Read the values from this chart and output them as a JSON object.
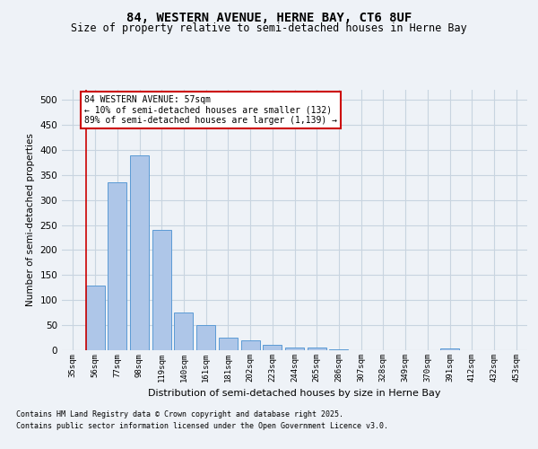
{
  "title1": "84, WESTERN AVENUE, HERNE BAY, CT6 8UF",
  "title2": "Size of property relative to semi-detached houses in Herne Bay",
  "xlabel": "Distribution of semi-detached houses by size in Herne Bay",
  "ylabel": "Number of semi-detached properties",
  "categories": [
    "35sqm",
    "56sqm",
    "77sqm",
    "98sqm",
    "119sqm",
    "140sqm",
    "161sqm",
    "181sqm",
    "202sqm",
    "223sqm",
    "244sqm",
    "265sqm",
    "286sqm",
    "307sqm",
    "328sqm",
    "349sqm",
    "370sqm",
    "391sqm",
    "412sqm",
    "432sqm",
    "453sqm"
  ],
  "values": [
    0,
    130,
    335,
    390,
    240,
    75,
    50,
    25,
    20,
    10,
    6,
    5,
    1,
    0,
    0,
    0,
    0,
    3,
    0,
    0,
    0
  ],
  "bar_color": "#aec6e8",
  "bar_edge_color": "#5b9bd5",
  "ylim": [
    0,
    520
  ],
  "yticks": [
    0,
    50,
    100,
    150,
    200,
    250,
    300,
    350,
    400,
    450,
    500
  ],
  "annotation_text": "84 WESTERN AVENUE: 57sqm\n← 10% of semi-detached houses are smaller (132)\n89% of semi-detached houses are larger (1,139) →",
  "annotation_box_color": "#ffffff",
  "annotation_border_color": "#cc0000",
  "footer1": "Contains HM Land Registry data © Crown copyright and database right 2025.",
  "footer2": "Contains public sector information licensed under the Open Government Licence v3.0.",
  "bg_color": "#eef2f7",
  "grid_color": "#c8d4e0"
}
